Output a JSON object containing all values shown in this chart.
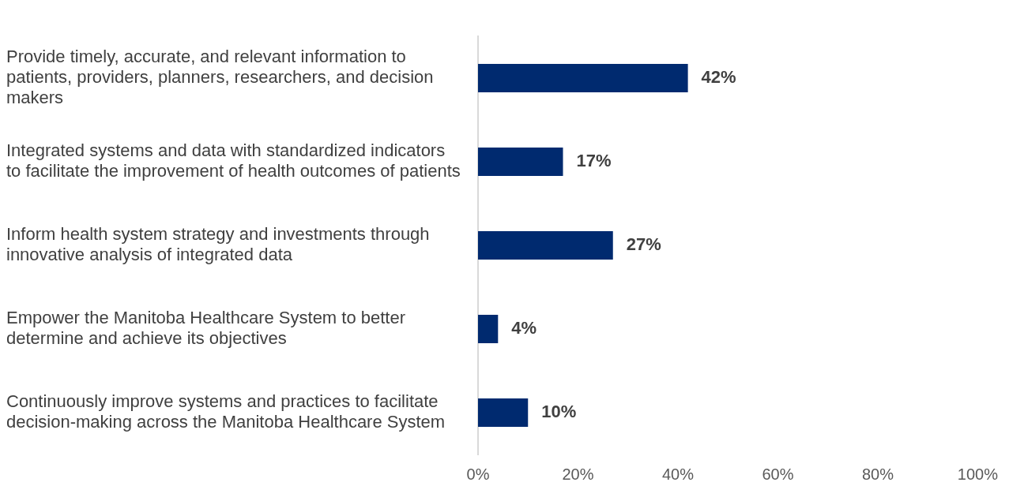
{
  "chart_data": {
    "type": "bar",
    "orientation": "horizontal",
    "categories": [
      "Provide timely, accurate, and relevant information to patients, providers, planners, researchers, and decision makers",
      "Integrated systems and data with standardized indicators to facilitate the improvement of health outcomes of patients",
      "Inform health system strategy and investments through innovative analysis of integrated data",
      "Empower the Manitoba Healthcare System to better determine and achieve its objectives",
      "Continuously improve systems and practices to facilitate decision-making across the Manitoba Healthcare System"
    ],
    "values": [
      42,
      17,
      27,
      4,
      10
    ],
    "value_labels": [
      "42%",
      "17%",
      "27%",
      "4%",
      "10%"
    ],
    "color": "#002a6f",
    "xlim": [
      0,
      100
    ],
    "xticks": [
      {
        "value": 0,
        "label": "0%"
      },
      {
        "value": 20,
        "label": "20%"
      },
      {
        "value": 40,
        "label": "40%"
      },
      {
        "value": 60,
        "label": "60%"
      },
      {
        "value": 80,
        "label": "80%"
      },
      {
        "value": 100,
        "label": "100%"
      }
    ],
    "grid": false,
    "legend": false
  }
}
